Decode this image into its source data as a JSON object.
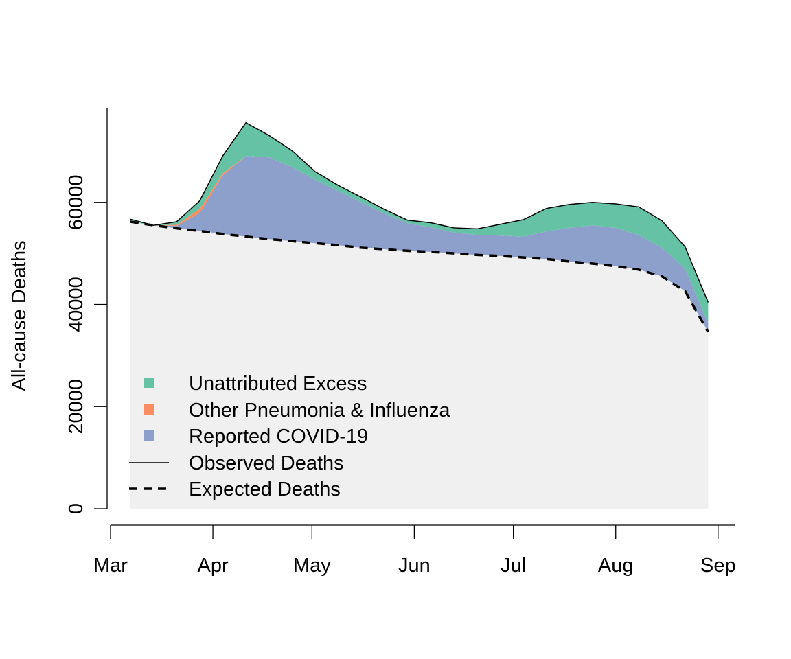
{
  "chart_data": {
    "type": "area",
    "title": "",
    "xlabel": "",
    "ylabel": "All-cause Deaths",
    "ylim": [
      0,
      80000
    ],
    "x_ticks": [
      "Mar",
      "Apr",
      "May",
      "Jun",
      "Jul",
      "Aug",
      "Sep"
    ],
    "y_ticks": [
      "0",
      "20000",
      "40000",
      "60000"
    ],
    "y_tick_values": [
      0,
      20000,
      40000,
      60000
    ],
    "x": [
      "2020-03-07",
      "2020-03-14",
      "2020-03-21",
      "2020-03-28",
      "2020-04-04",
      "2020-04-11",
      "2020-04-18",
      "2020-04-25",
      "2020-05-02",
      "2020-05-09",
      "2020-05-16",
      "2020-05-23",
      "2020-05-30",
      "2020-06-06",
      "2020-06-13",
      "2020-06-20",
      "2020-06-27",
      "2020-07-04",
      "2020-07-11",
      "2020-07-18",
      "2020-07-25",
      "2020-08-01",
      "2020-08-08",
      "2020-08-15",
      "2020-08-22",
      "2020-08-29"
    ],
    "series": [
      {
        "name": "Expected Deaths",
        "values": [
          56200,
          55500,
          54900,
          54400,
          53800,
          53300,
          52800,
          52400,
          52000,
          51600,
          51100,
          50800,
          50500,
          50300,
          50000,
          49700,
          49500,
          49200,
          48900,
          48400,
          48000,
          47500,
          46800,
          45500,
          42600,
          34600
        ]
      },
      {
        "name": "Reported COVID-19",
        "values": [
          0,
          0,
          500,
          3500,
          11500,
          15800,
          16000,
          14500,
          12400,
          10600,
          8900,
          7000,
          5400,
          4800,
          4100,
          3900,
          4000,
          4100,
          5400,
          6600,
          7500,
          7500,
          6800,
          5600,
          4400,
          1700
        ]
      },
      {
        "name": "Other Pneumonia & Influenza",
        "values": [
          0,
          0,
          200,
          800,
          400,
          0,
          0,
          0,
          0,
          0,
          0,
          0,
          0,
          0,
          0,
          0,
          0,
          0,
          0,
          0,
          0,
          0,
          0,
          0,
          0,
          0
        ]
      },
      {
        "name": "Unattributed Excess",
        "values": [
          500,
          0,
          600,
          1600,
          3400,
          6500,
          4300,
          3200,
          1600,
          1100,
          1000,
          800,
          600,
          900,
          900,
          1200,
          2200,
          3300,
          4500,
          5400,
          4900,
          4700,
          5500,
          5300,
          4300,
          4100
        ]
      },
      {
        "name": "Observed Deaths",
        "values": [
          56700,
          55500,
          56200,
          60300,
          69100,
          75600,
          73100,
          70100,
          66000,
          63300,
          61000,
          58600,
          56500,
          56000,
          55000,
          54800,
          55700,
          56600,
          58800,
          59600,
          60000,
          59700,
          59100,
          56400,
          51300,
          40400
        ]
      }
    ],
    "legend": {
      "position": "bottom-left",
      "entries": [
        {
          "label": "Unattributed Excess",
          "type": "fill",
          "color": "#66c2a5"
        },
        {
          "label": "Other Pneumonia & Influenza",
          "type": "fill",
          "color": "#fc8d62"
        },
        {
          "label": "Reported COVID-19",
          "type": "fill",
          "color": "#8da0cb"
        },
        {
          "label": "Observed Deaths",
          "type": "line",
          "color": "#000000"
        },
        {
          "label": "Expected Deaths",
          "type": "dashed",
          "color": "#000000"
        }
      ]
    },
    "colors": {
      "baseline_fill": "#f0f0f0",
      "covid": "#8da0cb",
      "pneumonia": "#fc8d62",
      "excess": "#66c2a5",
      "lines": "#000000"
    },
    "grid": false
  }
}
